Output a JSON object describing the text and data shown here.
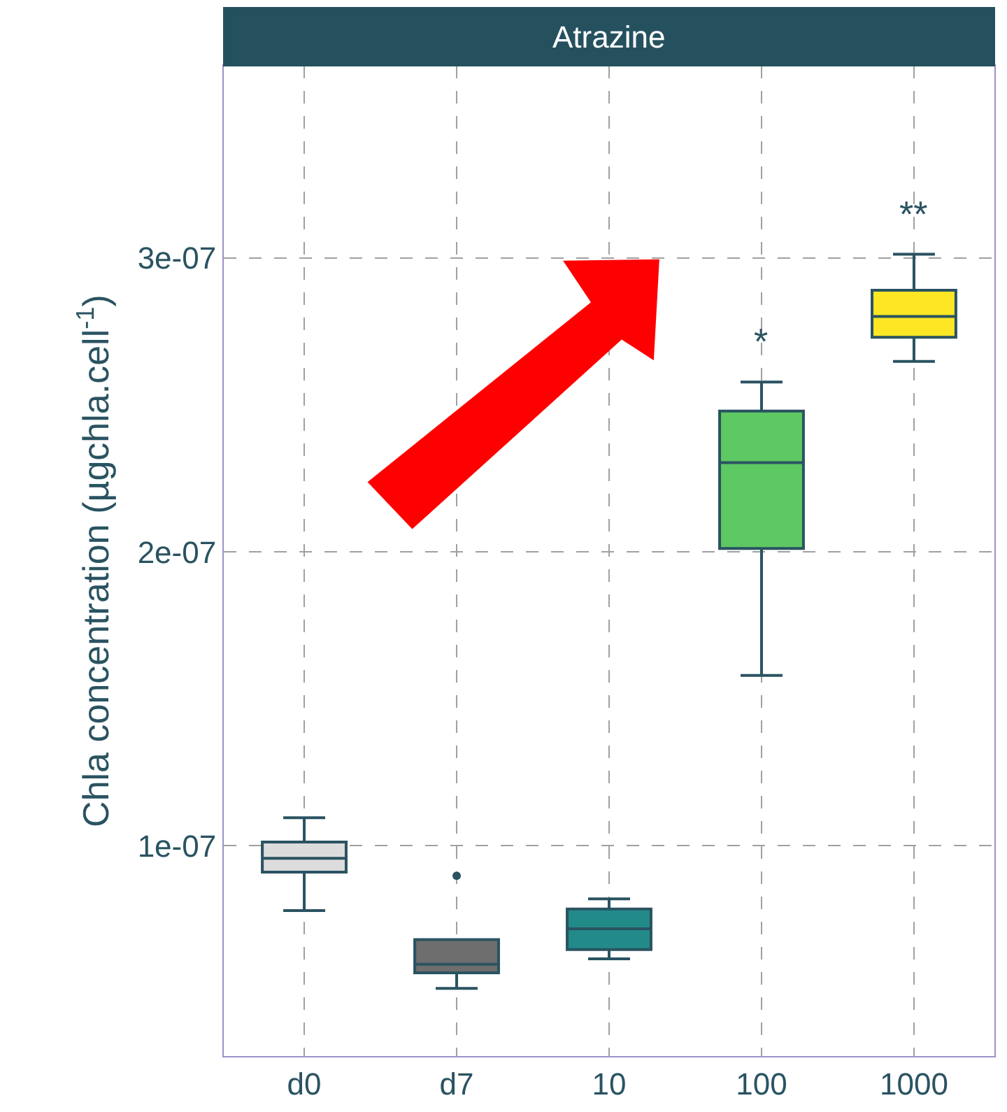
{
  "chart_data": {
    "type": "box",
    "title": "Atrazine",
    "ylabel": "Chla concentration (µgchla.cell$^{-1}$)",
    "categories": [
      "d0",
      "d7",
      "10",
      "100",
      "1000"
    ],
    "colors": [
      "#dcdcdc",
      "#6e6e6e",
      "#238a8a",
      "#5ec862",
      "#fde725"
    ],
    "boxes": [
      {
        "low": 7.8e-08,
        "q1": 9.11e-08,
        "median": 9.58e-08,
        "q3": 1.013e-07,
        "high": 1.096e-07
      },
      {
        "low": 5.15e-08,
        "q1": 5.68e-08,
        "median": 5.97e-08,
        "q3": 6.81e-08,
        "high": 6.81e-08,
        "outliers": [
          8.98e-08
        ]
      },
      {
        "low": 6.16e-08,
        "q1": 6.47e-08,
        "median": 7.18e-08,
        "q3": 7.85e-08,
        "high": 8.2e-08
      },
      {
        "low": 1.58e-07,
        "q1": 2.012e-07,
        "median": 2.304e-07,
        "q3": 2.479e-07,
        "high": 2.578e-07
      },
      {
        "low": 2.648e-07,
        "q1": 2.73e-07,
        "median": 2.801e-07,
        "q3": 2.89e-07,
        "high": 3.013e-07
      }
    ],
    "ylim": [
      2.85e-08,
      3.654e-07
    ],
    "yticks": [
      {
        "value": 1e-07,
        "label": "1e-07"
      },
      {
        "value": 2e-07,
        "label": "2e-07"
      },
      {
        "value": 3e-07,
        "label": "3e-07"
      }
    ],
    "annotations": [
      "*",
      "**"
    ],
    "grid": true
  }
}
